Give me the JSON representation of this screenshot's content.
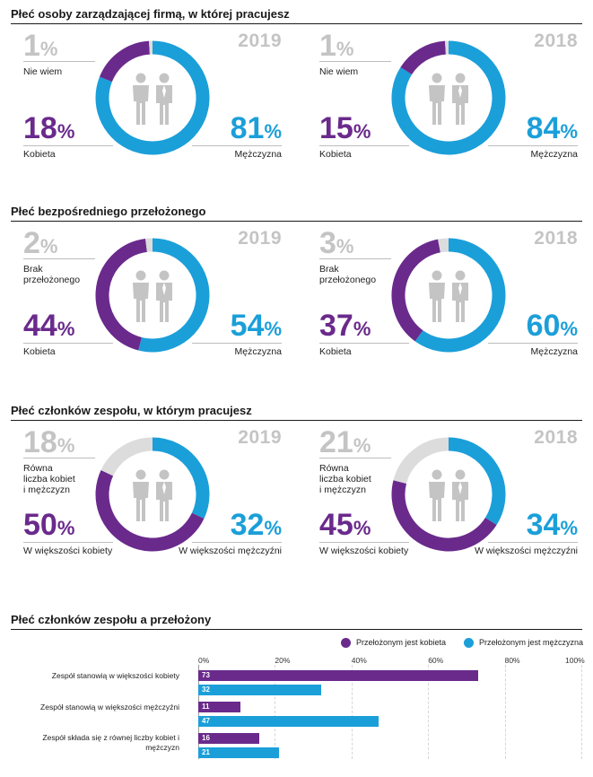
{
  "sections": [
    {
      "title": "Płeć osoby zarządzającej firmą, w której pracujesz",
      "panels": [
        {
          "year": "2019",
          "gray_pct": "1",
          "gray_label": "Nie wiem",
          "purple_pct": "18",
          "purple_label": "Kobieta",
          "blue_pct": "81",
          "blue_label": "Mężczyzna",
          "values": {
            "blue": 81,
            "purple": 18,
            "gray": 1
          }
        },
        {
          "year": "2018",
          "gray_pct": "1",
          "gray_label": "Nie wiem",
          "purple_pct": "15",
          "purple_label": "Kobieta",
          "blue_pct": "84",
          "blue_label": "Mężczyzna",
          "values": {
            "blue": 84,
            "purple": 15,
            "gray": 1
          }
        }
      ]
    },
    {
      "title": "Płeć bezpośredniego przełożonego",
      "panels": [
        {
          "year": "2019",
          "gray_pct": "2",
          "gray_label": "Brak przełożonego",
          "purple_pct": "44",
          "purple_label": "Kobieta",
          "blue_pct": "54",
          "blue_label": "Mężczyzna",
          "values": {
            "blue": 54,
            "purple": 44,
            "gray": 2
          }
        },
        {
          "year": "2018",
          "gray_pct": "3",
          "gray_label": "Brak przełożonego",
          "purple_pct": "37",
          "purple_label": "Kobieta",
          "blue_pct": "60",
          "blue_label": "Mężczyzna",
          "values": {
            "blue": 60,
            "purple": 37,
            "gray": 3
          }
        }
      ]
    },
    {
      "title": "Płeć członków zespołu, w którym pracujesz",
      "panels": [
        {
          "year": "2019",
          "gray_pct": "18",
          "gray_label": "Równa liczba kobiet i mężczyzn",
          "purple_pct": "50",
          "purple_label": "W większości kobiety",
          "blue_pct": "32",
          "blue_label": "W większości mężczyźni",
          "values": {
            "blue": 32,
            "purple": 50,
            "gray": 18
          }
        },
        {
          "year": "2018",
          "gray_pct": "21",
          "gray_label": "Równa liczba kobiet i mężczyzn",
          "purple_pct": "45",
          "purple_label": "W większości kobiety",
          "blue_pct": "34",
          "blue_label": "W większości mężczyźni",
          "values": {
            "blue": 34,
            "purple": 45,
            "gray": 21
          }
        }
      ]
    }
  ],
  "percent_sign": "%",
  "bar_section_title": "Płeć członków zespołu a przełożony",
  "colors": {
    "purple": "#6a2a8c",
    "blue": "#1b9fd9",
    "gray": "#dcdcdc",
    "figure": "#c4c4c4"
  },
  "icons": [
    "people-icon",
    "female-figure-icon",
    "male-figure-icon"
  ],
  "chart_data": {
    "type": "bar",
    "orientation": "horizontal",
    "categories": [
      "Zespół stanowią w większości kobiety",
      "Zespół stanowią w większości mężczyźni",
      "Zespół składa się z równej liczby kobiet i mężczyzn"
    ],
    "series": [
      {
        "name": "Przełożonym jest kobieta",
        "color": "#6a2a8c",
        "values": [
          73,
          11,
          16
        ]
      },
      {
        "name": "Przełożonym jest mężczyzna",
        "color": "#1b9fd9",
        "values": [
          32,
          47,
          21
        ]
      }
    ],
    "xlim": [
      0,
      100
    ],
    "ticks": [
      "0%",
      "20%",
      "40%",
      "60%",
      "80%",
      "100%"
    ],
    "legend_position": "top-right"
  }
}
